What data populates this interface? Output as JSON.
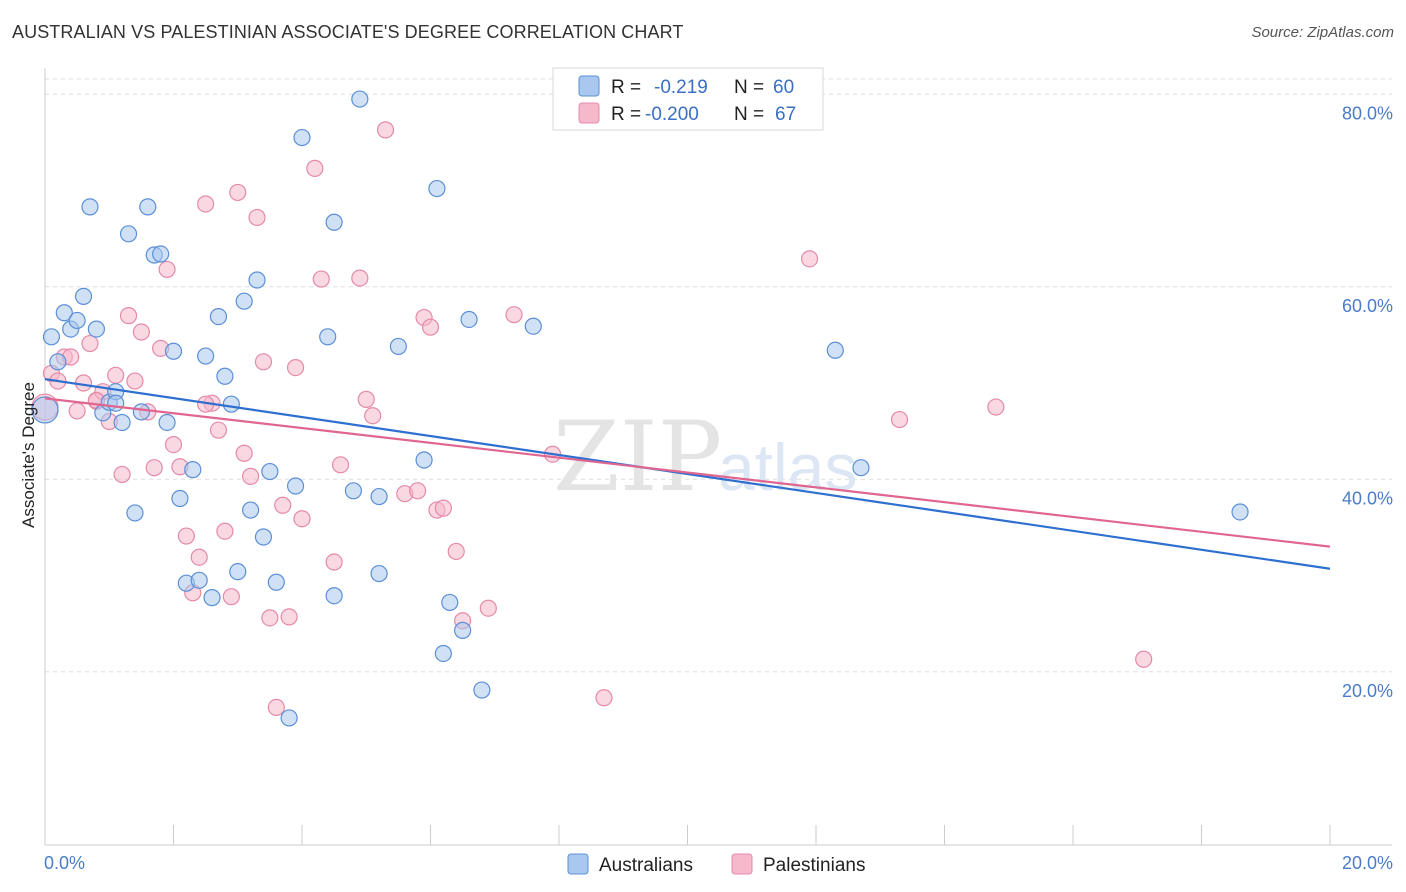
{
  "title": "AUSTRALIAN VS PALESTINIAN ASSOCIATE'S DEGREE CORRELATION CHART",
  "source": "Source: ZipAtlas.com",
  "watermark": {
    "zip": "ZIP",
    "atlas": "atlas"
  },
  "legend": {
    "r_label": "R =",
    "n_label": "N =",
    "rows": [
      {
        "r": "-0.219",
        "n": "60"
      },
      {
        "r": "-0.200",
        "n": "67"
      }
    ]
  },
  "colors": {
    "australians_fill": "#aac8ef",
    "australians_stroke": "#5b8fd6",
    "australians_line": "#2e6fd0",
    "palestinians_fill": "#f6b8cb",
    "palestinians_stroke": "#e58aa8",
    "palestinians_line": "#e06690",
    "axis_label": "#4a7cc7",
    "grid": "#dddddd"
  },
  "chart_data": {
    "type": "scatter",
    "title": "AUSTRALIAN VS PALESTINIAN ASSOCIATE'S DEGREE CORRELATION CHART",
    "xlabel": "",
    "ylabel": "Associate's Degree",
    "xlim": [
      0,
      20
    ],
    "ylim": [
      2,
      82
    ],
    "x_ticks": [
      "0.0%",
      "20.0%"
    ],
    "y_ticks": [
      {
        "value": 20,
        "label": "20.0%"
      },
      {
        "value": 40,
        "label": "40.0%"
      },
      {
        "value": 60,
        "label": "60.0%"
      },
      {
        "value": 80,
        "label": "80.0%"
      }
    ],
    "grid": true,
    "legend_position": "bottom",
    "series": [
      {
        "name": "Australians",
        "r": -0.219,
        "n": 60,
        "trend": {
          "x0": 0,
          "y0": 50.4,
          "x1": 20,
          "y1": 30.7
        },
        "points": [
          [
            0.0,
            47.2
          ],
          [
            0.1,
            54.8
          ],
          [
            0.2,
            52.2
          ],
          [
            0.3,
            57.3
          ],
          [
            0.4,
            55.6
          ],
          [
            0.5,
            56.5
          ],
          [
            0.6,
            59.0
          ],
          [
            0.7,
            68.3
          ],
          [
            0.8,
            55.6
          ],
          [
            0.9,
            46.9
          ],
          [
            1.0,
            48.0
          ],
          [
            1.1,
            49.1
          ],
          [
            1.2,
            45.9
          ],
          [
            1.3,
            65.5
          ],
          [
            1.4,
            36.5
          ],
          [
            1.5,
            47.0
          ],
          [
            1.6,
            68.3
          ],
          [
            1.7,
            63.3
          ],
          [
            1.8,
            63.4
          ],
          [
            1.9,
            45.9
          ],
          [
            2.0,
            53.3
          ],
          [
            2.1,
            38.0
          ],
          [
            2.2,
            29.2
          ],
          [
            2.3,
            41.0
          ],
          [
            2.4,
            29.5
          ],
          [
            2.5,
            52.8
          ],
          [
            2.6,
            27.7
          ],
          [
            2.7,
            56.9
          ],
          [
            2.8,
            50.7
          ],
          [
            2.9,
            47.8
          ],
          [
            3.0,
            30.4
          ],
          [
            3.1,
            58.5
          ],
          [
            3.2,
            36.8
          ],
          [
            3.3,
            60.7
          ],
          [
            3.4,
            34.0
          ],
          [
            3.5,
            40.8
          ],
          [
            3.6,
            29.3
          ],
          [
            3.8,
            15.2
          ],
          [
            3.9,
            39.3
          ],
          [
            4.0,
            75.5
          ],
          [
            4.4,
            54.8
          ],
          [
            4.5,
            66.7
          ],
          [
            4.5,
            27.9
          ],
          [
            4.8,
            38.8
          ],
          [
            4.9,
            79.5
          ],
          [
            5.2,
            38.2
          ],
          [
            5.5,
            53.8
          ],
          [
            5.2,
            30.2
          ],
          [
            5.9,
            42.0
          ],
          [
            6.1,
            70.2
          ],
          [
            6.2,
            21.9
          ],
          [
            6.3,
            27.2
          ],
          [
            6.5,
            24.3
          ],
          [
            6.6,
            56.6
          ],
          [
            6.8,
            18.1
          ],
          [
            7.6,
            55.9
          ],
          [
            12.3,
            53.4
          ],
          [
            12.7,
            41.2
          ],
          [
            18.6,
            36.6
          ],
          [
            1.1,
            47.9
          ]
        ]
      },
      {
        "name": "Palestinians",
        "r": -0.2,
        "n": 67,
        "trend": {
          "x0": 0,
          "y0": 48.4,
          "x1": 20,
          "y1": 33.0
        },
        "points": [
          [
            0.0,
            47.5
          ],
          [
            0.1,
            51.0
          ],
          [
            0.2,
            50.2
          ],
          [
            0.3,
            52.7
          ],
          [
            0.4,
            52.7
          ],
          [
            0.5,
            47.1
          ],
          [
            0.6,
            50.0
          ],
          [
            0.7,
            54.1
          ],
          [
            0.8,
            48.1
          ],
          [
            0.9,
            49.1
          ],
          [
            1.0,
            46.0
          ],
          [
            1.1,
            50.8
          ],
          [
            1.2,
            40.5
          ],
          [
            1.3,
            57.0
          ],
          [
            1.4,
            50.2
          ],
          [
            1.5,
            55.3
          ],
          [
            1.6,
            47.0
          ],
          [
            1.7,
            41.2
          ],
          [
            1.8,
            53.6
          ],
          [
            1.9,
            61.8
          ],
          [
            2.0,
            43.6
          ],
          [
            2.1,
            41.3
          ],
          [
            2.2,
            34.1
          ],
          [
            2.3,
            28.2
          ],
          [
            2.4,
            31.9
          ],
          [
            2.5,
            68.6
          ],
          [
            2.6,
            47.9
          ],
          [
            2.7,
            45.1
          ],
          [
            2.8,
            34.6
          ],
          [
            2.9,
            27.8
          ],
          [
            3.0,
            69.8
          ],
          [
            3.1,
            42.7
          ],
          [
            3.2,
            40.3
          ],
          [
            3.3,
            67.2
          ],
          [
            3.4,
            52.2
          ],
          [
            3.5,
            25.6
          ],
          [
            3.6,
            16.3
          ],
          [
            3.7,
            37.3
          ],
          [
            3.8,
            25.7
          ],
          [
            3.9,
            51.6
          ],
          [
            4.0,
            35.9
          ],
          [
            4.2,
            72.3
          ],
          [
            4.3,
            60.8
          ],
          [
            4.5,
            31.4
          ],
          [
            4.6,
            41.5
          ],
          [
            4.9,
            60.9
          ],
          [
            5.0,
            48.3
          ],
          [
            5.1,
            46.6
          ],
          [
            5.3,
            76.3
          ],
          [
            5.6,
            38.5
          ],
          [
            5.8,
            38.8
          ],
          [
            5.9,
            56.8
          ],
          [
            6.0,
            55.8
          ],
          [
            6.1,
            36.8
          ],
          [
            6.2,
            37.0
          ],
          [
            6.4,
            32.5
          ],
          [
            6.5,
            25.3
          ],
          [
            6.9,
            26.6
          ],
          [
            7.3,
            57.1
          ],
          [
            7.9,
            42.6
          ],
          [
            8.7,
            17.3
          ],
          [
            11.9,
            62.9
          ],
          [
            13.3,
            46.2
          ],
          [
            14.8,
            47.5
          ],
          [
            17.1,
            21.3
          ],
          [
            0.8,
            48.2
          ],
          [
            2.5,
            47.8
          ]
        ]
      }
    ]
  }
}
